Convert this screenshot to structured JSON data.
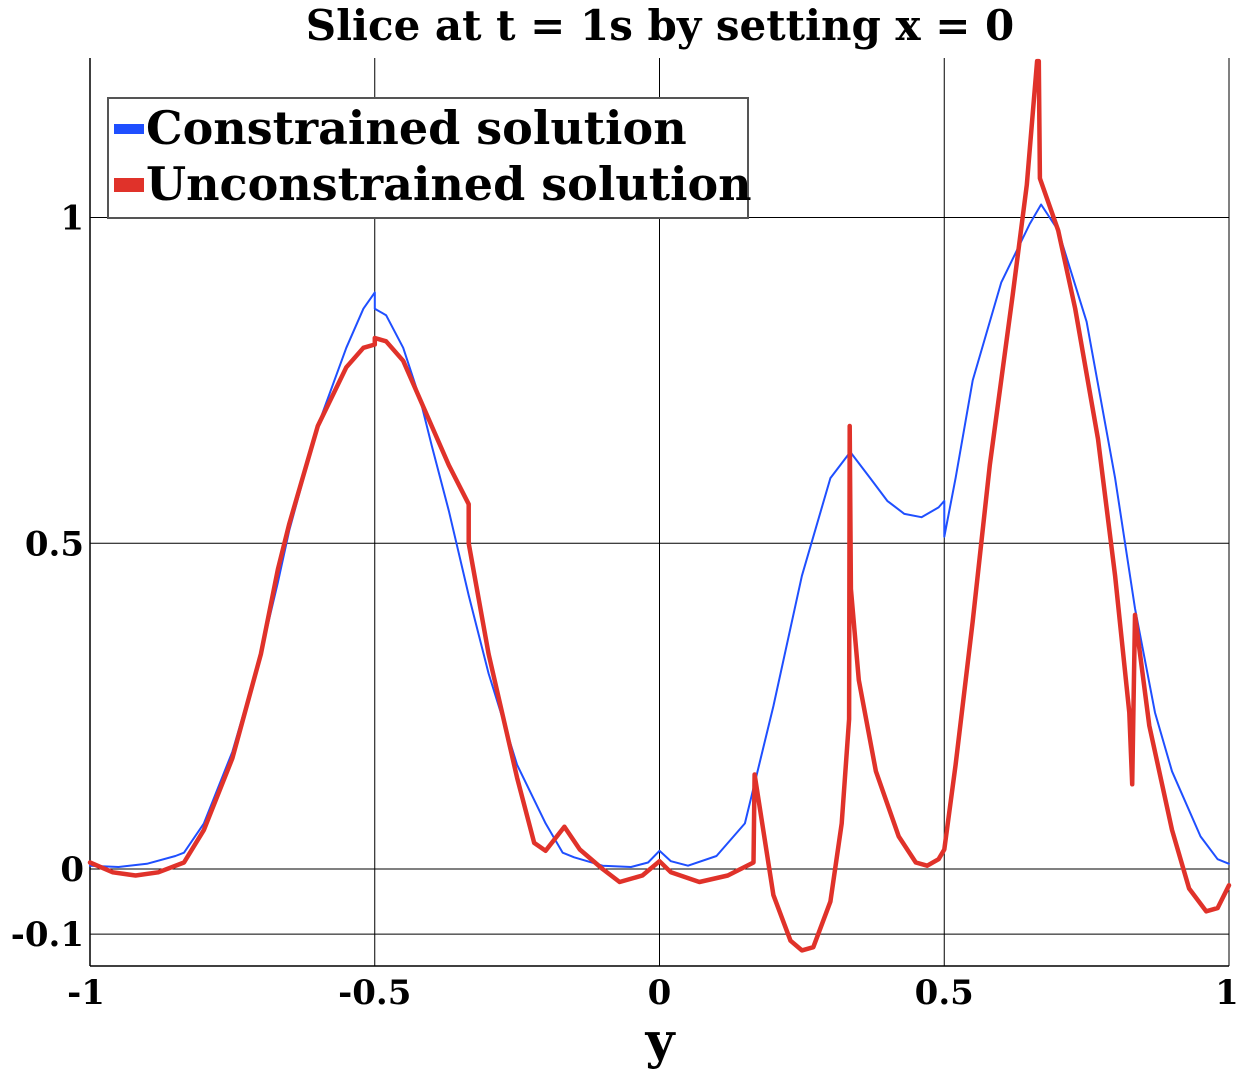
{
  "chart_data": {
    "type": "line",
    "title": "Slice at t = 1s by setting x = 0",
    "xlabel": "y",
    "ylabel": "",
    "xlim": [
      -1,
      1
    ],
    "ylim": [
      -0.15,
      1.25
    ],
    "x_ticks": [
      -1,
      -0.5,
      0,
      0.5,
      1
    ],
    "x_tick_labels": [
      "-1",
      "-0.5",
      "0",
      "0.5",
      "1"
    ],
    "y_ticks": [
      -0.1,
      0,
      0.5,
      1
    ],
    "y_tick_labels": [
      "-0.1",
      "0",
      "0.5",
      "1"
    ],
    "grid": true,
    "legend_position": "top-left",
    "series": [
      {
        "name": "Constrained solution",
        "color": "#1f4fff",
        "points": [
          [
            -1.0,
            0.005
          ],
          [
            -0.95,
            0.003
          ],
          [
            -0.9,
            0.008
          ],
          [
            -0.85,
            0.02
          ],
          [
            -0.835,
            0.025
          ],
          [
            -0.8,
            0.07
          ],
          [
            -0.75,
            0.18
          ],
          [
            -0.7,
            0.33
          ],
          [
            -0.67,
            0.44
          ],
          [
            -0.65,
            0.52
          ],
          [
            -0.6,
            0.68
          ],
          [
            -0.55,
            0.8
          ],
          [
            -0.52,
            0.86
          ],
          [
            -0.5,
            0.885
          ],
          [
            -0.5,
            0.86
          ],
          [
            -0.48,
            0.85
          ],
          [
            -0.45,
            0.8
          ],
          [
            -0.42,
            0.72
          ],
          [
            -0.4,
            0.65
          ],
          [
            -0.37,
            0.55
          ],
          [
            -0.335,
            0.42
          ],
          [
            -0.3,
            0.3
          ],
          [
            -0.25,
            0.16
          ],
          [
            -0.2,
            0.07
          ],
          [
            -0.17,
            0.025
          ],
          [
            -0.15,
            0.018
          ],
          [
            -0.1,
            0.005
          ],
          [
            -0.05,
            0.003
          ],
          [
            -0.02,
            0.01
          ],
          [
            0.0,
            0.028
          ],
          [
            0.02,
            0.012
          ],
          [
            0.05,
            0.005
          ],
          [
            0.1,
            0.02
          ],
          [
            0.15,
            0.07
          ],
          [
            0.2,
            0.25
          ],
          [
            0.25,
            0.45
          ],
          [
            0.3,
            0.6
          ],
          [
            0.335,
            0.64
          ],
          [
            0.37,
            0.6
          ],
          [
            0.4,
            0.565
          ],
          [
            0.43,
            0.545
          ],
          [
            0.46,
            0.54
          ],
          [
            0.49,
            0.555
          ],
          [
            0.5,
            0.565
          ],
          [
            0.5,
            0.51
          ],
          [
            0.52,
            0.6
          ],
          [
            0.55,
            0.75
          ],
          [
            0.6,
            0.9
          ],
          [
            0.65,
            0.99
          ],
          [
            0.67,
            1.02
          ],
          [
            0.7,
            0.98
          ],
          [
            0.75,
            0.84
          ],
          [
            0.8,
            0.6
          ],
          [
            0.835,
            0.4
          ],
          [
            0.87,
            0.24
          ],
          [
            0.9,
            0.15
          ],
          [
            0.95,
            0.05
          ],
          [
            0.98,
            0.015
          ],
          [
            1.0,
            0.008
          ]
        ]
      },
      {
        "name": "Unconstrained solution",
        "color": "#e0322a",
        "points": [
          [
            -1.0,
            0.01
          ],
          [
            -0.96,
            -0.005
          ],
          [
            -0.92,
            -0.01
          ],
          [
            -0.88,
            -0.005
          ],
          [
            -0.835,
            0.01
          ],
          [
            -0.8,
            0.06
          ],
          [
            -0.75,
            0.17
          ],
          [
            -0.7,
            0.33
          ],
          [
            -0.67,
            0.46
          ],
          [
            -0.65,
            0.53
          ],
          [
            -0.6,
            0.68
          ],
          [
            -0.55,
            0.77
          ],
          [
            -0.52,
            0.8
          ],
          [
            -0.5,
            0.805
          ],
          [
            -0.5,
            0.815
          ],
          [
            -0.48,
            0.81
          ],
          [
            -0.45,
            0.78
          ],
          [
            -0.4,
            0.68
          ],
          [
            -0.37,
            0.62
          ],
          [
            -0.335,
            0.56
          ],
          [
            -0.335,
            0.5
          ],
          [
            -0.3,
            0.33
          ],
          [
            -0.25,
            0.14
          ],
          [
            -0.22,
            0.04
          ],
          [
            -0.2,
            0.028
          ],
          [
            -0.167,
            0.065
          ],
          [
            -0.14,
            0.03
          ],
          [
            -0.1,
            0.0
          ],
          [
            -0.07,
            -0.02
          ],
          [
            -0.03,
            -0.01
          ],
          [
            0.0,
            0.012
          ],
          [
            0.02,
            -0.005
          ],
          [
            0.07,
            -0.02
          ],
          [
            0.12,
            -0.01
          ],
          [
            0.165,
            0.01
          ],
          [
            0.167,
            0.145
          ],
          [
            0.2,
            -0.04
          ],
          [
            0.23,
            -0.11
          ],
          [
            0.25,
            -0.125
          ],
          [
            0.27,
            -0.12
          ],
          [
            0.3,
            -0.05
          ],
          [
            0.32,
            0.07
          ],
          [
            0.333,
            0.23
          ],
          [
            0.334,
            0.68
          ],
          [
            0.336,
            0.43
          ],
          [
            0.35,
            0.29
          ],
          [
            0.38,
            0.15
          ],
          [
            0.42,
            0.05
          ],
          [
            0.45,
            0.01
          ],
          [
            0.47,
            0.005
          ],
          [
            0.49,
            0.015
          ],
          [
            0.5,
            0.03
          ],
          [
            0.52,
            0.16
          ],
          [
            0.55,
            0.38
          ],
          [
            0.58,
            0.62
          ],
          [
            0.62,
            0.88
          ],
          [
            0.645,
            1.05
          ],
          [
            0.663,
            1.24
          ],
          [
            0.666,
            1.24
          ],
          [
            0.668,
            1.06
          ],
          [
            0.7,
            0.98
          ],
          [
            0.73,
            0.86
          ],
          [
            0.77,
            0.66
          ],
          [
            0.8,
            0.45
          ],
          [
            0.825,
            0.24
          ],
          [
            0.83,
            0.13
          ],
          [
            0.835,
            0.39
          ],
          [
            0.86,
            0.22
          ],
          [
            0.9,
            0.06
          ],
          [
            0.93,
            -0.03
          ],
          [
            0.96,
            -0.065
          ],
          [
            0.98,
            -0.06
          ],
          [
            1.0,
            -0.025
          ]
        ]
      }
    ]
  }
}
